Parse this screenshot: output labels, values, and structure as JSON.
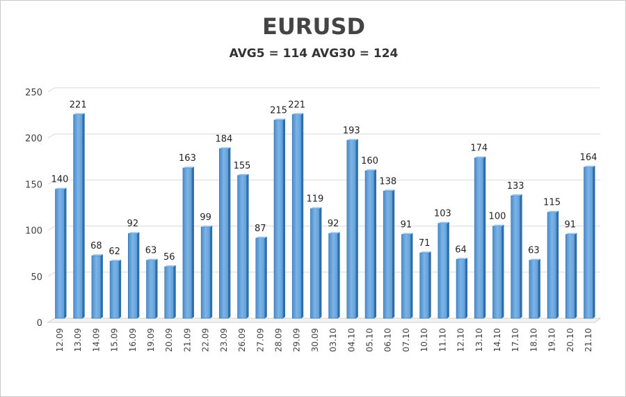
{
  "chart_data": {
    "type": "bar",
    "title": "EURUSD",
    "subtitle": "AVG5 = 114 AVG30 = 124",
    "xlabel": "",
    "ylabel": "",
    "ylim": [
      0,
      250
    ],
    "yticks": [
      0,
      50,
      100,
      150,
      200,
      250
    ],
    "grid": true,
    "categories": [
      "12.09",
      "13.09",
      "14.09",
      "15.09",
      "16.09",
      "19.09",
      "20.09",
      "21.09",
      "22.09",
      "23.09",
      "26.09",
      "27.09",
      "28.09",
      "29.09",
      "30.09",
      "03.10",
      "04.10",
      "05.10",
      "06.10",
      "07.10",
      "10.10",
      "11.10",
      "12.10",
      "13.10",
      "14.10",
      "17.10",
      "18.10",
      "19.10",
      "20.10",
      "21.10"
    ],
    "values": [
      140,
      221,
      68,
      62,
      92,
      63,
      56,
      163,
      99,
      184,
      155,
      87,
      215,
      221,
      119,
      92,
      193,
      160,
      138,
      91,
      71,
      103,
      64,
      174,
      100,
      133,
      63,
      115,
      91,
      164
    ],
    "bar_color": "#5b9bd5"
  }
}
